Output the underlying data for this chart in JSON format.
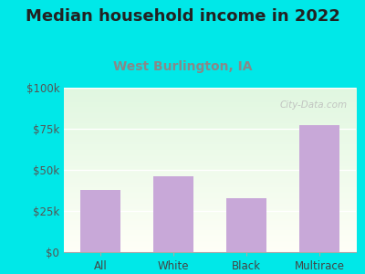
{
  "title": "Median household income in 2022",
  "subtitle": "West Burlington, IA",
  "categories": [
    "All",
    "White",
    "Black",
    "Multirace"
  ],
  "values": [
    38000,
    46000,
    33000,
    77000
  ],
  "bar_color": "#c8a8d8",
  "ylim": [
    0,
    100000
  ],
  "yticks": [
    0,
    25000,
    50000,
    75000,
    100000
  ],
  "ytick_labels": [
    "$0",
    "$25k",
    "$50k",
    "$75k",
    "$100k"
  ],
  "background_color": "#00e8e8",
  "title_fontsize": 13,
  "subtitle_fontsize": 10,
  "tick_fontsize": 8.5,
  "watermark": "City-Data.com",
  "subtitle_color": "#888888",
  "title_color": "#222222"
}
